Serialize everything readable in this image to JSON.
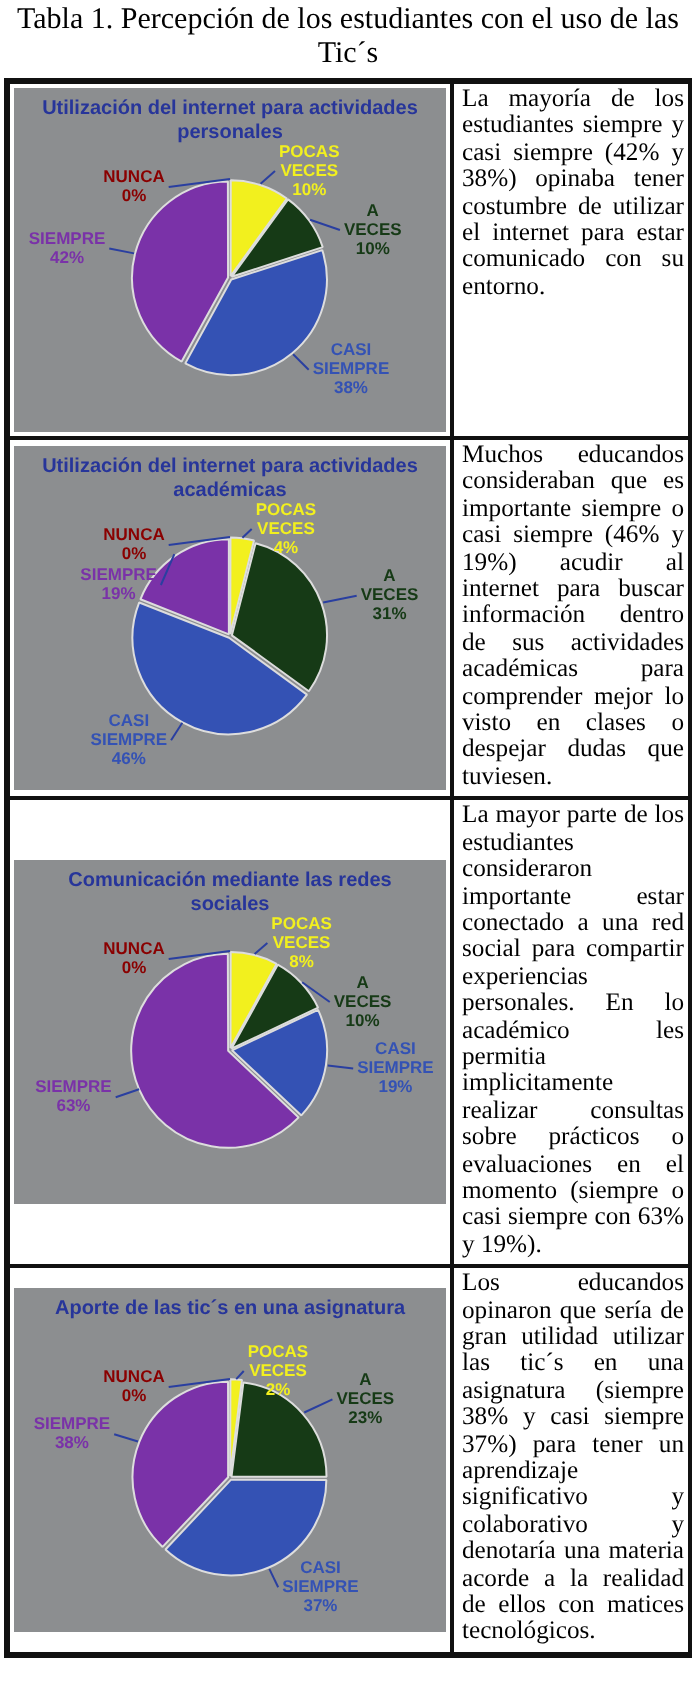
{
  "chart_data": [
    {
      "type": "other",
      "title": "Tabla 1. Percepción de los estudiantes con el uso de las Tic´s"
    },
    {
      "type": "pie",
      "title": "Utilización del internet para actividades personales",
      "categories": [
        "NUNCA",
        "POCAS VECES",
        "A VECES",
        "CASI SIEMPRE",
        "SIEMPRE"
      ],
      "values": [
        0,
        10,
        10,
        38,
        42
      ],
      "value_labels": [
        "0%",
        "10%",
        "10%",
        "38%",
        "42%"
      ],
      "colors": [
        "#8a0000",
        "#f2f01e",
        "#163a16",
        "#3452b4",
        "#7a32a8"
      ]
    },
    {
      "type": "other",
      "annotations": [
        "La mayoría de los estudiantes siempre y casi siempre (42% y 38%) opinaba tener costumbre de utilizar el internet para estar comunicado con su entorno."
      ]
    },
    {
      "type": "pie",
      "title": "Utilización del internet para actividades académicas",
      "categories": [
        "NUNCA",
        "POCAS VECES",
        "A VECES",
        "CASI SIEMPRE",
        "SIEMPRE"
      ],
      "values": [
        0,
        4,
        31,
        46,
        19
      ],
      "value_labels": [
        "0%",
        "4%",
        "31%",
        "46%",
        "19%"
      ],
      "colors": [
        "#8a0000",
        "#f2f01e",
        "#163a16",
        "#3452b4",
        "#7a32a8"
      ]
    },
    {
      "type": "other",
      "annotations": [
        "Muchos educandos consideraban que es importante siempre o casi siempre (46% y 19%) acudir al internet para buscar información dentro de sus actividades académicas para comprender mejor lo visto en clases o despejar dudas que tuviesen."
      ]
    },
    {
      "type": "pie",
      "title": "Comunicación mediante las redes sociales",
      "categories": [
        "NUNCA",
        "POCAS VECES",
        "A VECES",
        "CASI SIEMPRE",
        "SIEMPRE"
      ],
      "values": [
        0,
        8,
        10,
        19,
        63
      ],
      "value_labels": [
        "0%",
        "8%",
        "10%",
        "19%",
        "63%"
      ],
      "colors": [
        "#8a0000",
        "#f2f01e",
        "#163a16",
        "#3452b4",
        "#7a32a8"
      ]
    },
    {
      "type": "other",
      "annotations": [
        "La mayor parte de los estudiantes consideraron importante estar conectado a una red social para compartir experiencias personales. En lo académico les permitia implicitamente realizar consultas sobre prácticos o evaluaciones en el momento (siempre o casi siempre con 63% y 19%)."
      ]
    },
    {
      "type": "pie",
      "title": "Aporte de las tic´s en una asignatura",
      "categories": [
        "NUNCA",
        "POCAS VECES",
        "A VECES",
        "CASI SIEMPRE",
        "SIEMPRE"
      ],
      "values": [
        0,
        2,
        23,
        37,
        38
      ],
      "value_labels": [
        "0%",
        "2%",
        "23%",
        "37%",
        "38%"
      ],
      "colors": [
        "#8a0000",
        "#f2f01e",
        "#163a16",
        "#3452b4",
        "#7a32a8"
      ]
    },
    {
      "type": "other",
      "annotations": [
        "Los educandos opinaron que sería de gran utilidad utilizar las tic´s en una asignatura (siempre 38% y casi siempre 37%) para tener un aprendizaje significativo y colaborativo y denotaría una materia acorde a la realidad de ellos con matices tecnológicos."
      ]
    }
  ]
}
